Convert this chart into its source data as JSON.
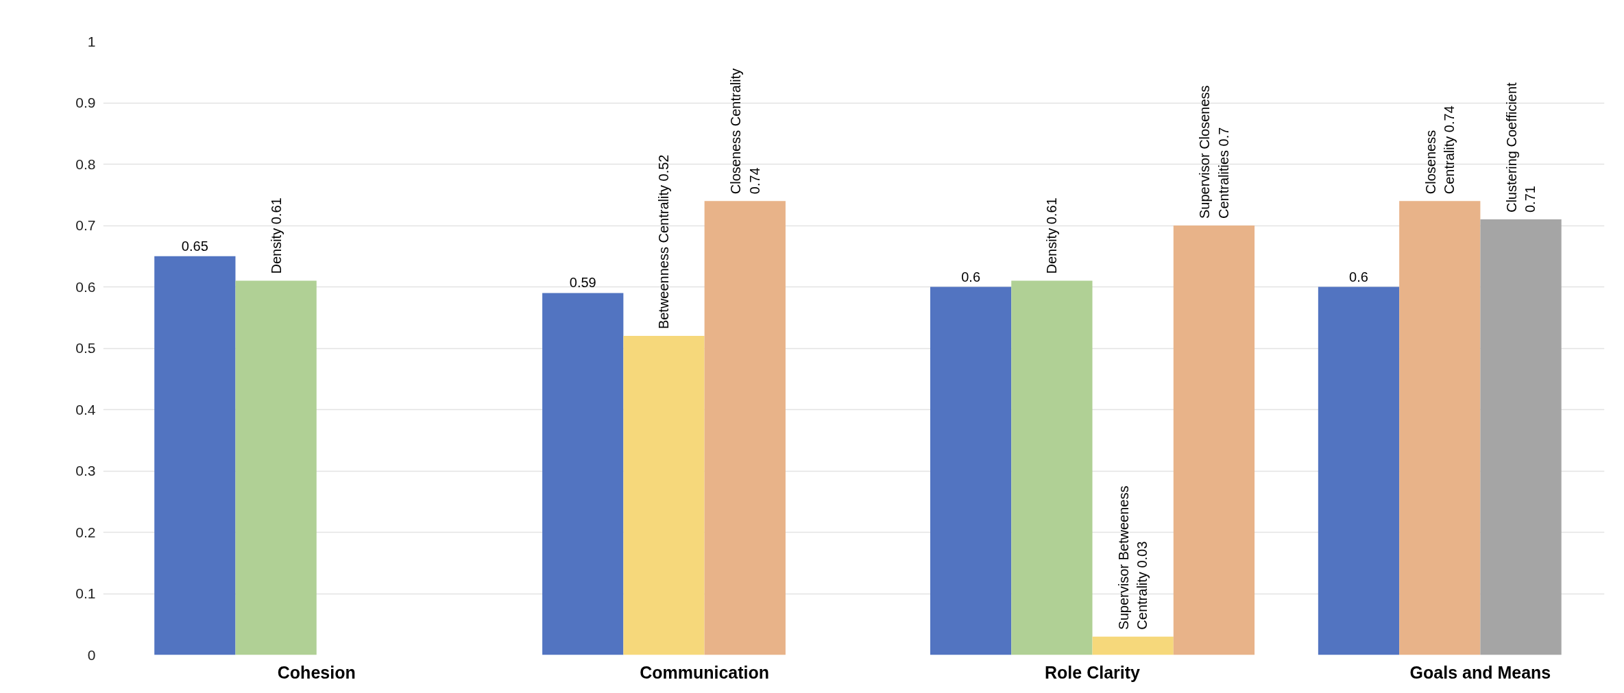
{
  "chart_data": {
    "type": "bar",
    "categories": [
      "Cohesion",
      "Communication",
      "Role Clarity",
      "Goals and Means"
    ],
    "series": [
      {
        "colors": [
          "#5274c1",
          "#5274c1",
          "#5274c1",
          "#5274c1"
        ],
        "values": [
          0.65,
          0.59,
          0.6,
          0.6
        ],
        "value_labels": [
          "0.65",
          "0.59",
          "0.6",
          "0.6"
        ]
      },
      {
        "colors": [
          "#b0d095",
          "#f6d87b",
          "#b0d095",
          "#e8b389"
        ],
        "values": [
          0.61,
          0.52,
          0.61,
          0.74
        ],
        "value_labels": [
          "Density 0.61",
          "Betweenness Centrality 0.52",
          "Density 0.61",
          "Closeness\nCentrality  0.74"
        ]
      },
      {
        "colors": [
          null,
          "#e8b389",
          "#f6d87b",
          "#a5a5a5"
        ],
        "values": [
          null,
          0.74,
          0.03,
          0.71
        ],
        "value_labels": [
          null,
          "Closeness Centrality\n0.74",
          "Supervisor Betweeness\nCentrality 0.03",
          "Clustering Coefficient\n0.71"
        ]
      },
      {
        "colors": [
          null,
          null,
          "#e8b389",
          null
        ],
        "values": [
          null,
          null,
          0.7,
          null
        ],
        "value_labels": [
          null,
          null,
          "Supervisor Closeness\nCentralities 0.7",
          null
        ]
      }
    ],
    "ylim": [
      0,
      1
    ],
    "yticks": [
      0,
      0.1,
      0.2,
      0.3,
      0.4,
      0.5,
      0.6,
      0.7,
      0.8,
      0.9,
      1
    ],
    "grid": "y"
  }
}
